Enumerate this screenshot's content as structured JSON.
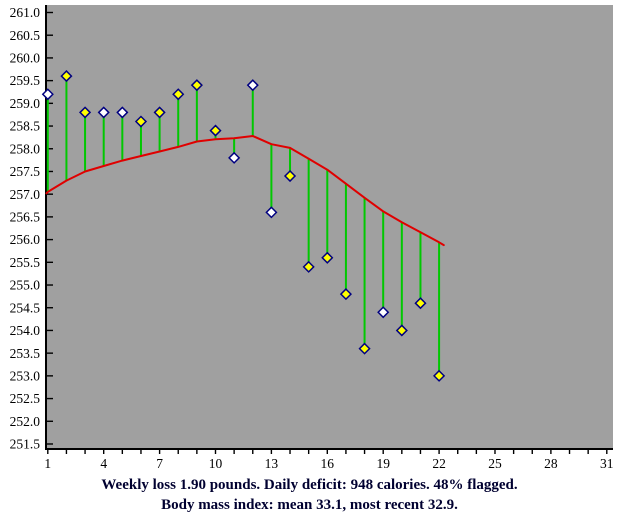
{
  "caption": {
    "line1": "Weekly loss 1.90 pounds. Daily deficit: 948 calories. 48% flagged.",
    "line2": "Body mass index: mean 33.1, most recent 32.9."
  },
  "chart_data": {
    "type": "scatter",
    "title": "",
    "xlabel": "",
    "ylabel": "",
    "grid": false,
    "legend_position": "none",
    "x_axis": {
      "range": [
        1,
        31
      ],
      "minor_tick_step": 1,
      "tick_label_days": [
        1,
        4,
        7,
        10,
        13,
        16,
        19,
        22,
        25,
        28,
        31
      ],
      "tick_labels": [
        "1",
        "4",
        "7",
        "10",
        "13",
        "16",
        "19",
        "22",
        "25",
        "28",
        "31"
      ]
    },
    "y_axis": {
      "range": [
        251.5,
        261.0
      ],
      "tick_step": 0.5,
      "tick_labels": [
        "261.0",
        "260.5",
        "260.0",
        "259.5",
        "259.0",
        "258.5",
        "258.0",
        "257.5",
        "257.0",
        "256.5",
        "256.0",
        "255.5",
        "255.0",
        "254.5",
        "254.0",
        "253.5",
        "253.0",
        "252.5",
        "252.0",
        "251.5"
      ]
    },
    "series": [
      {
        "name": "daily-weight",
        "type": "scatter-diamond",
        "x": [
          1,
          2,
          3,
          4,
          5,
          6,
          7,
          8,
          9,
          10,
          11,
          12,
          13,
          14,
          15,
          16,
          17,
          18,
          19,
          20,
          21,
          22
        ],
        "values": [
          259.2,
          259.6,
          258.8,
          258.8,
          258.8,
          258.6,
          258.8,
          259.2,
          259.4,
          258.4,
          257.8,
          259.4,
          256.6,
          257.4,
          255.4,
          255.6,
          254.8,
          253.6,
          254.4,
          254.0,
          254.6,
          253.0
        ],
        "flagged": [
          false,
          true,
          true,
          false,
          false,
          true,
          true,
          true,
          true,
          true,
          false,
          false,
          false,
          true,
          true,
          true,
          true,
          true,
          false,
          true,
          true,
          true
        ]
      },
      {
        "name": "trend",
        "type": "line",
        "x": [
          0.93,
          1,
          2,
          3,
          4,
          5,
          6,
          7,
          8,
          9,
          10,
          11,
          12,
          13,
          14,
          15,
          16,
          17,
          18,
          19,
          20,
          21,
          22,
          22.25
        ],
        "values": [
          257.02,
          257.05,
          257.3,
          257.5,
          257.62,
          257.74,
          257.84,
          257.94,
          258.04,
          258.16,
          258.21,
          258.23,
          258.28,
          258.1,
          258.02,
          257.78,
          257.54,
          257.23,
          256.92,
          256.62,
          256.38,
          256.16,
          255.94,
          255.88
        ]
      }
    ],
    "colors": {
      "plot_background": "#A0A0A0",
      "axis": "#000000",
      "tick_text": "#000000",
      "trend_line": "#E00000",
      "stem": "#00C800",
      "diamond_border": "#000080",
      "diamond_flagged_fill": "#FFFF00",
      "diamond_unflagged_fill": "#FFFFFF",
      "caption_text": "#000030"
    }
  }
}
